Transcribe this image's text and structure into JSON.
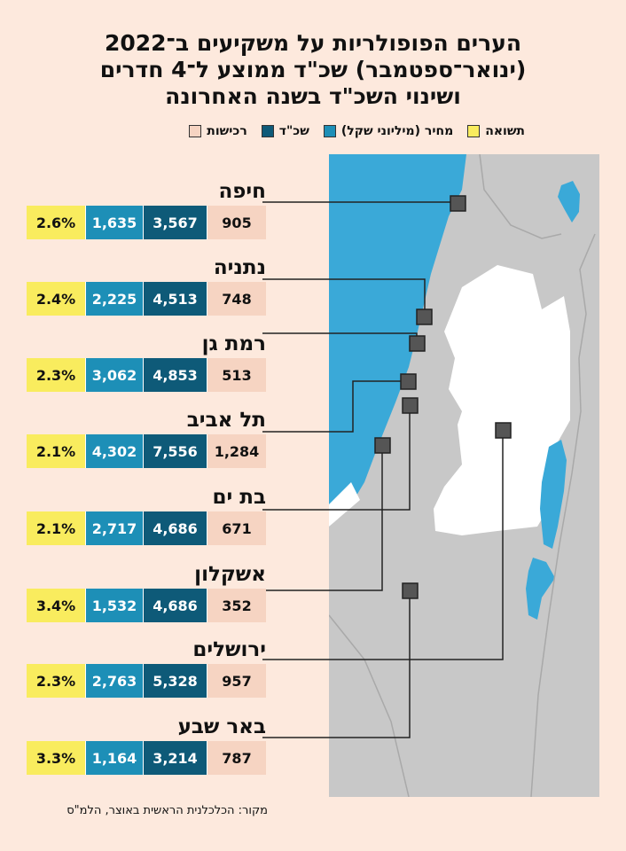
{
  "title_lines": [
    "הערים הפופולריות על משקיעים ב־2022",
    "(ינואר־ספטמבר) שכ\"ד ממוצע ל־4 חדרים",
    "ושינוי השכ\"ד בשנה האחרונה"
  ],
  "legend": {
    "deals": "רכישות",
    "price": "מחיר (מיליוני שקל)",
    "rent": "שכ\"ד",
    "change": "תשואה"
  },
  "colors": {
    "deals": "#f6d4c2",
    "price": "#0e5a78",
    "rent": "#1d8fb7",
    "change": "#f9ec5e",
    "sea": "#3aa9d8",
    "land": "#c8c8c8",
    "region": "#ffffff"
  },
  "chart_data": {
    "type": "table",
    "columns": [
      "city",
      "deals",
      "price",
      "rent",
      "change"
    ],
    "rows": [
      {
        "city": "חיפה",
        "deals": "905",
        "price": "3,567",
        "rent": "1,635",
        "change": "2.6%"
      },
      {
        "city": "נתניה",
        "deals": "748",
        "price": "4,513",
        "rent": "2,225",
        "change": "2.4%"
      },
      {
        "city": "רמת גן",
        "deals": "513",
        "price": "4,853",
        "rent": "3,062",
        "change": "2.3%"
      },
      {
        "city": "תל אביב",
        "deals": "1,284",
        "price": "7,556",
        "rent": "4,302",
        "change": "2.1%"
      },
      {
        "city": "בת ים",
        "deals": "671",
        "price": "4,686",
        "rent": "2,717",
        "change": "2.1%"
      },
      {
        "city": "אשקלון",
        "deals": "352",
        "price": "4,686",
        "rent": "1,532",
        "change": "3.4%"
      },
      {
        "city": "ירושלים",
        "deals": "957",
        "price": "5,328",
        "rent": "2,763",
        "change": "2.3%"
      },
      {
        "city": "באר שבע",
        "deals": "787",
        "price": "3,214",
        "rent": "1,164",
        "change": "3.3%"
      }
    ]
  },
  "source": "מקור: הכלכלנית הראשית באוצר, הלמ\"ס"
}
